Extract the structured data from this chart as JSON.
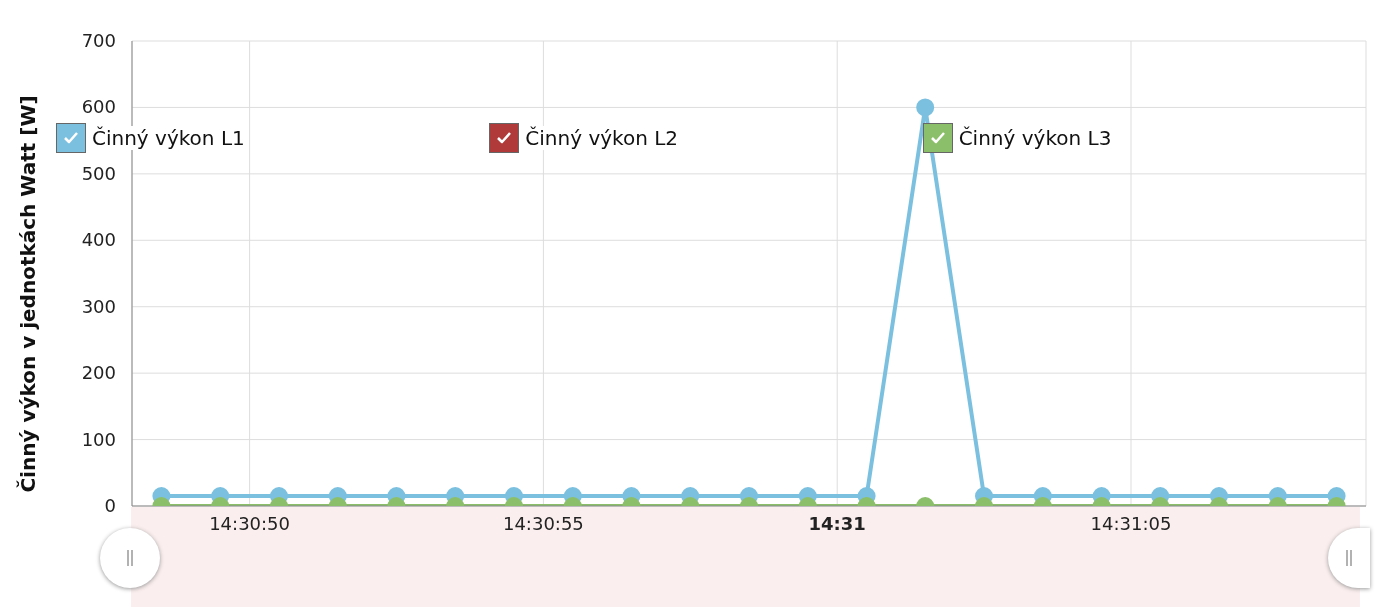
{
  "chart_data": {
    "type": "line",
    "ylabel": "Činný výkon v jednotkách Watt [W]",
    "x": [
      14.513472,
      14.51375,
      14.514028,
      14.514306,
      14.514583,
      14.514861,
      14.515139,
      14.515417,
      14.515694,
      14.515972,
      14.51625,
      14.516528,
      14.516806,
      14.517083,
      14.517361,
      14.517639,
      14.517917,
      14.518194,
      14.518472,
      14.51875,
      14.519028
    ],
    "series": [
      {
        "name": "Činný výkon L1",
        "color": "#7cc0e0",
        "values": [
          15,
          15,
          15,
          15,
          15,
          15,
          15,
          15,
          15,
          15,
          15,
          15,
          15,
          600,
          15,
          15,
          15,
          15,
          15,
          15,
          15
        ]
      },
      {
        "name": "Činný výkon L2",
        "color": "#b03a3a",
        "values": [
          null,
          null,
          null,
          null,
          null,
          null,
          null,
          null,
          null,
          null,
          null,
          null,
          null,
          null,
          null,
          null,
          null,
          null,
          null,
          null,
          null
        ]
      },
      {
        "name": "Činný výkon L3",
        "color": "#8cbf6a",
        "values": [
          0,
          0,
          0,
          0,
          0,
          0,
          0,
          0,
          0,
          0,
          0,
          0,
          0,
          0,
          0,
          0,
          0,
          0,
          0,
          0,
          0
        ]
      }
    ],
    "xlim": [
      14.513333,
      14.519167
    ],
    "xticks": [
      {
        "value": 14.513889,
        "label": "14:30:50"
      },
      {
        "value": 14.515278,
        "label": "14:30:55"
      },
      {
        "value": 14.516667,
        "label": "14:31"
      },
      {
        "value": 14.518056,
        "label": "14:31:05"
      }
    ],
    "ylim": [
      0,
      700
    ],
    "yticks": [
      0,
      100,
      200,
      300,
      400,
      500,
      600,
      700
    ],
    "grid": true,
    "legend": "top",
    "marker": "circle",
    "line_style": "solid"
  }
}
